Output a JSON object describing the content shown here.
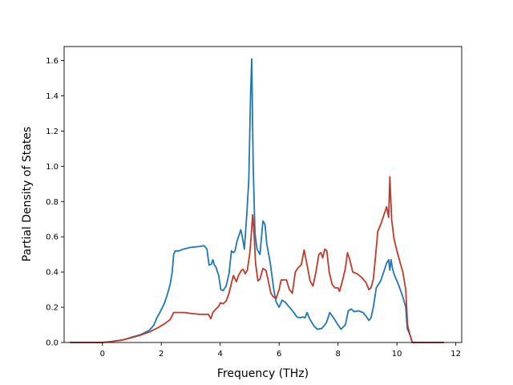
{
  "chart_data": {
    "type": "line",
    "title": "",
    "xlabel": "Frequency (THz)",
    "ylabel": "Partial Density of States",
    "xlim": [
      -1.3,
      12.2
    ],
    "ylim": [
      0.0,
      1.68
    ],
    "xticks": [
      0,
      2,
      4,
      6,
      8,
      10,
      12
    ],
    "xtick_labels": [
      "0",
      "2",
      "4",
      "6",
      "8",
      "10",
      "12"
    ],
    "yticks": [
      0.0,
      0.2,
      0.4,
      0.6,
      0.8,
      1.0,
      1.2,
      1.4,
      1.6
    ],
    "ytick_labels": [
      "0.0",
      "0.2",
      "0.4",
      "0.6",
      "0.8",
      "1.0",
      "1.2",
      "1.4",
      "1.6"
    ],
    "grid": false,
    "legend": "none",
    "series": [
      {
        "color": "#1f77b4",
        "points": [
          [
            -1.1,
            0.0
          ],
          [
            0.0,
            0.0
          ],
          [
            0.3,
            0.005
          ],
          [
            0.7,
            0.015
          ],
          [
            1.0,
            0.03
          ],
          [
            1.3,
            0.045
          ],
          [
            1.6,
            0.07
          ],
          [
            1.75,
            0.1
          ],
          [
            1.85,
            0.14
          ],
          [
            1.95,
            0.17
          ],
          [
            2.1,
            0.22
          ],
          [
            2.2,
            0.27
          ],
          [
            2.3,
            0.33
          ],
          [
            2.37,
            0.4
          ],
          [
            2.42,
            0.5
          ],
          [
            2.47,
            0.52
          ],
          [
            2.6,
            0.52
          ],
          [
            2.75,
            0.53
          ],
          [
            3.0,
            0.54
          ],
          [
            3.3,
            0.545
          ],
          [
            3.45,
            0.55
          ],
          [
            3.55,
            0.53
          ],
          [
            3.62,
            0.44
          ],
          [
            3.7,
            0.445
          ],
          [
            3.75,
            0.47
          ],
          [
            3.8,
            0.44
          ],
          [
            3.85,
            0.43
          ],
          [
            3.95,
            0.38
          ],
          [
            4.02,
            0.3
          ],
          [
            4.1,
            0.295
          ],
          [
            4.2,
            0.32
          ],
          [
            4.3,
            0.39
          ],
          [
            4.38,
            0.52
          ],
          [
            4.45,
            0.51
          ],
          [
            4.5,
            0.52
          ],
          [
            4.58,
            0.58
          ],
          [
            4.7,
            0.64
          ],
          [
            4.75,
            0.6
          ],
          [
            4.82,
            0.53
          ],
          [
            4.9,
            0.72
          ],
          [
            4.97,
            0.92
          ],
          [
            5.03,
            1.4
          ],
          [
            5.07,
            1.61
          ],
          [
            5.12,
            1.0
          ],
          [
            5.18,
            0.62
          ],
          [
            5.25,
            0.53
          ],
          [
            5.35,
            0.5
          ],
          [
            5.45,
            0.69
          ],
          [
            5.52,
            0.67
          ],
          [
            5.58,
            0.56
          ],
          [
            5.7,
            0.45
          ],
          [
            5.82,
            0.3
          ],
          [
            5.9,
            0.23
          ],
          [
            6.0,
            0.2
          ],
          [
            6.1,
            0.24
          ],
          [
            6.2,
            0.23
          ],
          [
            6.35,
            0.2
          ],
          [
            6.5,
            0.17
          ],
          [
            6.6,
            0.145
          ],
          [
            6.7,
            0.14
          ],
          [
            6.8,
            0.145
          ],
          [
            6.88,
            0.14
          ],
          [
            6.95,
            0.17
          ],
          [
            7.05,
            0.13
          ],
          [
            7.2,
            0.09
          ],
          [
            7.3,
            0.075
          ],
          [
            7.45,
            0.08
          ],
          [
            7.6,
            0.11
          ],
          [
            7.72,
            0.17
          ],
          [
            7.85,
            0.14
          ],
          [
            8.0,
            0.1
          ],
          [
            8.1,
            0.075
          ],
          [
            8.25,
            0.1
          ],
          [
            8.35,
            0.18
          ],
          [
            8.45,
            0.19
          ],
          [
            8.55,
            0.175
          ],
          [
            8.7,
            0.18
          ],
          [
            8.85,
            0.17
          ],
          [
            8.95,
            0.15
          ],
          [
            9.05,
            0.125
          ],
          [
            9.12,
            0.14
          ],
          [
            9.2,
            0.2
          ],
          [
            9.3,
            0.31
          ],
          [
            9.45,
            0.35
          ],
          [
            9.55,
            0.4
          ],
          [
            9.65,
            0.45
          ],
          [
            9.72,
            0.47
          ],
          [
            9.76,
            0.41
          ],
          [
            9.8,
            0.47
          ],
          [
            9.85,
            0.42
          ],
          [
            9.92,
            0.38
          ],
          [
            10.05,
            0.33
          ],
          [
            10.2,
            0.26
          ],
          [
            10.3,
            0.2
          ],
          [
            10.35,
            0.08
          ],
          [
            10.45,
            0.04
          ],
          [
            10.52,
            0.0
          ],
          [
            11.6,
            0.0
          ]
        ]
      },
      {
        "color": "#c0392b",
        "points": [
          [
            -1.1,
            0.0
          ],
          [
            0.0,
            0.0
          ],
          [
            0.3,
            0.005
          ],
          [
            0.7,
            0.015
          ],
          [
            1.0,
            0.028
          ],
          [
            1.3,
            0.042
          ],
          [
            1.6,
            0.06
          ],
          [
            1.9,
            0.085
          ],
          [
            2.1,
            0.105
          ],
          [
            2.3,
            0.13
          ],
          [
            2.42,
            0.17
          ],
          [
            2.6,
            0.17
          ],
          [
            2.8,
            0.17
          ],
          [
            3.0,
            0.165
          ],
          [
            3.3,
            0.16
          ],
          [
            3.6,
            0.16
          ],
          [
            3.68,
            0.135
          ],
          [
            3.75,
            0.17
          ],
          [
            3.85,
            0.19
          ],
          [
            3.95,
            0.205
          ],
          [
            4.0,
            0.225
          ],
          [
            4.1,
            0.22
          ],
          [
            4.2,
            0.235
          ],
          [
            4.3,
            0.28
          ],
          [
            4.4,
            0.35
          ],
          [
            4.45,
            0.38
          ],
          [
            4.55,
            0.345
          ],
          [
            4.62,
            0.38
          ],
          [
            4.72,
            0.41
          ],
          [
            4.78,
            0.415
          ],
          [
            4.85,
            0.39
          ],
          [
            4.92,
            0.41
          ],
          [
            5.0,
            0.5
          ],
          [
            5.05,
            0.6
          ],
          [
            5.1,
            0.725
          ],
          [
            5.15,
            0.62
          ],
          [
            5.2,
            0.45
          ],
          [
            5.28,
            0.35
          ],
          [
            5.35,
            0.36
          ],
          [
            5.45,
            0.42
          ],
          [
            5.55,
            0.41
          ],
          [
            5.62,
            0.36
          ],
          [
            5.72,
            0.28
          ],
          [
            5.8,
            0.26
          ],
          [
            5.9,
            0.25
          ],
          [
            6.0,
            0.3
          ],
          [
            6.07,
            0.355
          ],
          [
            6.15,
            0.355
          ],
          [
            6.25,
            0.355
          ],
          [
            6.35,
            0.3
          ],
          [
            6.45,
            0.28
          ],
          [
            6.55,
            0.4
          ],
          [
            6.65,
            0.425
          ],
          [
            6.75,
            0.44
          ],
          [
            6.85,
            0.525
          ],
          [
            6.95,
            0.44
          ],
          [
            7.05,
            0.35
          ],
          [
            7.15,
            0.32
          ],
          [
            7.25,
            0.4
          ],
          [
            7.35,
            0.5
          ],
          [
            7.42,
            0.51
          ],
          [
            7.48,
            0.48
          ],
          [
            7.55,
            0.53
          ],
          [
            7.62,
            0.52
          ],
          [
            7.7,
            0.4
          ],
          [
            7.8,
            0.33
          ],
          [
            7.9,
            0.31
          ],
          [
            8.0,
            0.31
          ],
          [
            8.05,
            0.29
          ],
          [
            8.15,
            0.35
          ],
          [
            8.25,
            0.42
          ],
          [
            8.32,
            0.51
          ],
          [
            8.4,
            0.47
          ],
          [
            8.5,
            0.4
          ],
          [
            8.65,
            0.39
          ],
          [
            8.8,
            0.37
          ],
          [
            8.95,
            0.34
          ],
          [
            9.05,
            0.3
          ],
          [
            9.12,
            0.31
          ],
          [
            9.2,
            0.36
          ],
          [
            9.28,
            0.5
          ],
          [
            9.35,
            0.63
          ],
          [
            9.45,
            0.67
          ],
          [
            9.55,
            0.72
          ],
          [
            9.65,
            0.77
          ],
          [
            9.72,
            0.71
          ],
          [
            9.76,
            0.94
          ],
          [
            9.82,
            0.7
          ],
          [
            9.9,
            0.59
          ],
          [
            10.0,
            0.52
          ],
          [
            10.1,
            0.46
          ],
          [
            10.2,
            0.4
          ],
          [
            10.3,
            0.3
          ],
          [
            10.36,
            0.1
          ],
          [
            10.45,
            0.04
          ],
          [
            10.52,
            0.0
          ],
          [
            11.6,
            0.0
          ]
        ]
      }
    ]
  }
}
